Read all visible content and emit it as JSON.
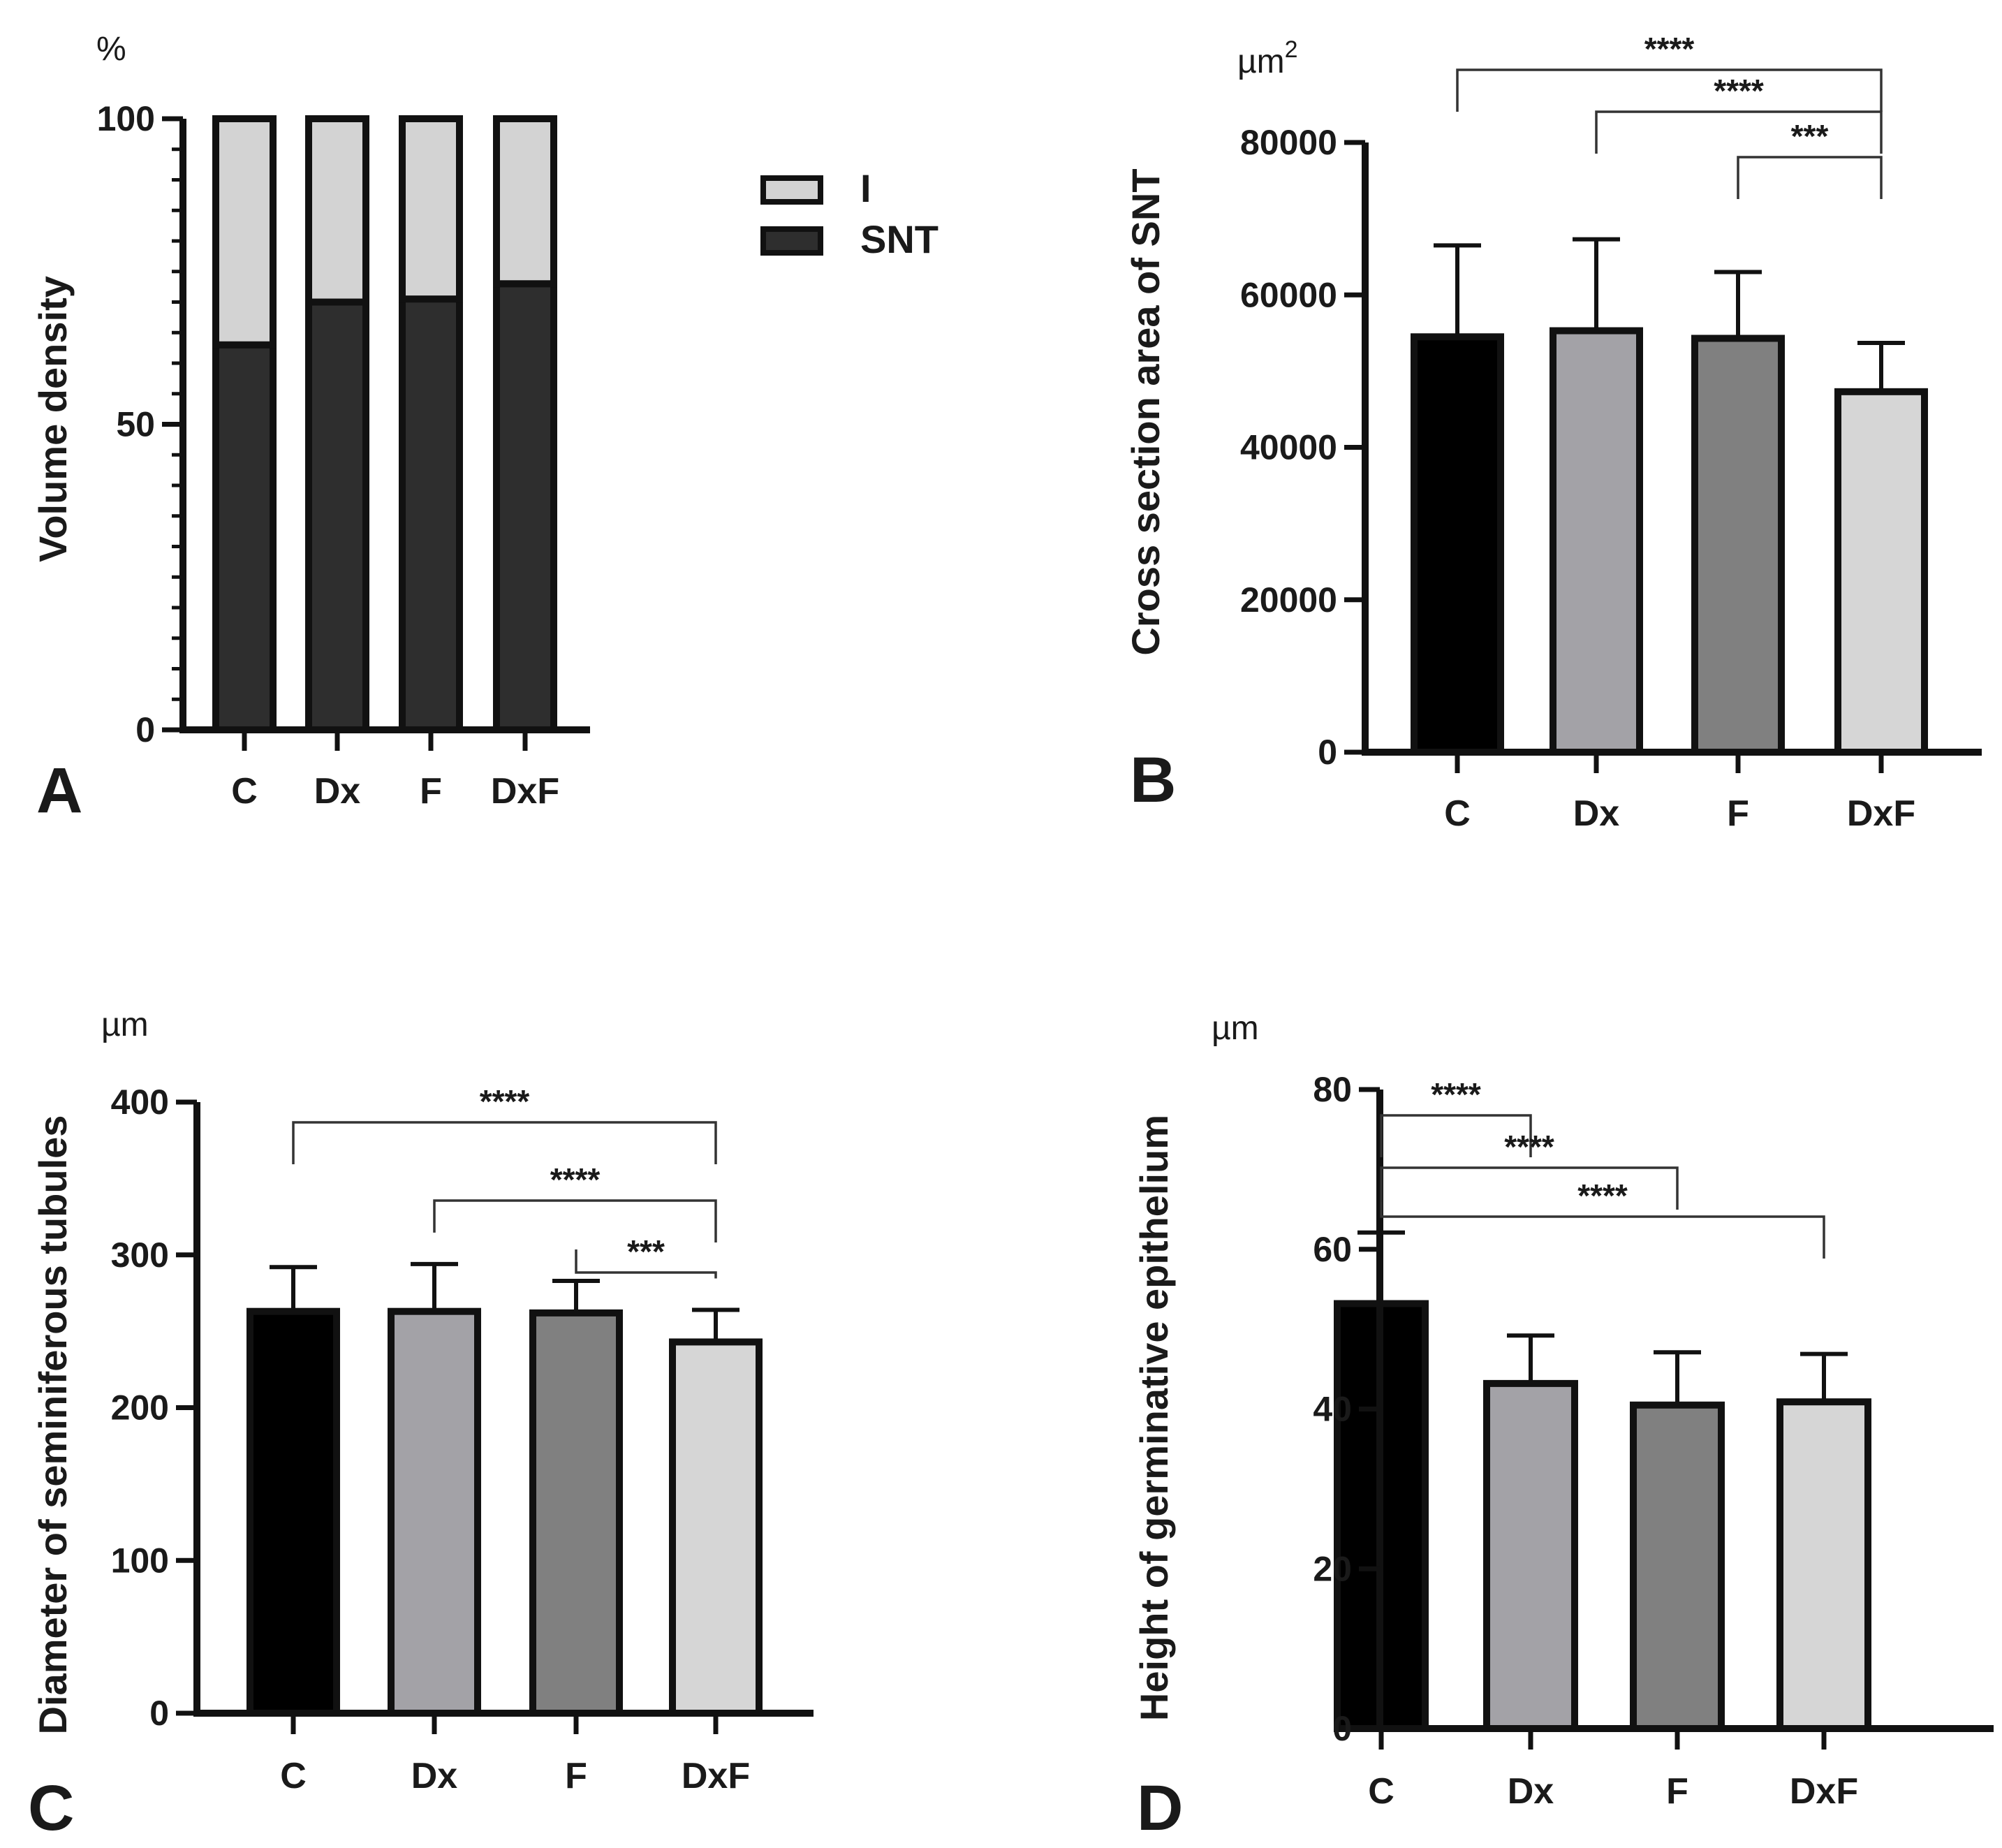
{
  "chart_data": [
    {
      "panel": "A",
      "type": "bar",
      "stacked": true,
      "unit_label": "%",
      "ylabel": "Volume density",
      "xlabel": "",
      "ylim": [
        0,
        100
      ],
      "yticks": [
        0,
        50,
        100
      ],
      "categories": [
        "C",
        "Dx",
        "F",
        "DxF"
      ],
      "series": [
        {
          "name": "SNT",
          "values": [
            63,
            70,
            70.5,
            73
          ],
          "color": "#2e2e2e"
        },
        {
          "name": "I",
          "values": [
            37,
            30,
            29.5,
            27
          ],
          "color": "#d3d3d3"
        }
      ],
      "legend": {
        "position": "right",
        "entries": [
          "I",
          "SNT"
        ]
      }
    },
    {
      "panel": "B",
      "type": "bar",
      "unit_label": "µm",
      "unit_sup": "2",
      "ylabel": "Cross section area of SNT",
      "xlabel": "",
      "ylim": [
        0,
        80000
      ],
      "yticks": [
        0,
        20000,
        40000,
        60000,
        80000
      ],
      "categories": [
        "C",
        "Dx",
        "F",
        "DxF"
      ],
      "values": [
        54500,
        55300,
        54300,
        47300
      ],
      "errors": [
        12000,
        12000,
        8700,
        6400
      ],
      "colors": [
        "#000000",
        "#a3a2a7",
        "#808080",
        "#d6d6d6"
      ],
      "significance": [
        {
          "from": 0,
          "to": 3,
          "label": "****"
        },
        {
          "from": 1,
          "to": 3,
          "label": "****"
        },
        {
          "from": 2,
          "to": 3,
          "label": "***"
        }
      ]
    },
    {
      "panel": "C",
      "type": "bar",
      "unit_label": "µm",
      "ylabel": "Diameter of seminiferous tubules",
      "xlabel": "",
      "ylim": [
        0,
        400
      ],
      "yticks": [
        0,
        100,
        200,
        300,
        400
      ],
      "categories": [
        "C",
        "Dx",
        "F",
        "DxF"
      ],
      "values": [
        263,
        263,
        262,
        243
      ],
      "errors": [
        29,
        31,
        21,
        21
      ],
      "colors": [
        "#000000",
        "#a3a2a7",
        "#808080",
        "#d6d6d6"
      ],
      "significance": [
        {
          "from": 0,
          "to": 3,
          "label": "****"
        },
        {
          "from": 1,
          "to": 3,
          "label": "****"
        },
        {
          "from": 2,
          "to": 3,
          "label": "***"
        }
      ]
    },
    {
      "panel": "D",
      "type": "bar",
      "unit_label": "µm",
      "ylabel": "Height of germinative epithelium",
      "xlabel": "",
      "ylim": [
        0,
        80
      ],
      "yticks": [
        0,
        20,
        40,
        60,
        80
      ],
      "categories": [
        "C",
        "Dx",
        "F",
        "DxF"
      ],
      "values": [
        53.2,
        43.2,
        40.5,
        40.9
      ],
      "errors": [
        8.9,
        6.0,
        6.6,
        6.0
      ],
      "colors": [
        "#000000",
        "#a3a2a7",
        "#808080",
        "#d6d6d6"
      ],
      "significance": [
        {
          "from": 0,
          "to": 1,
          "label": "****"
        },
        {
          "from": 0,
          "to": 2,
          "label": "****"
        },
        {
          "from": 0,
          "to": 3,
          "label": "****"
        }
      ]
    }
  ]
}
